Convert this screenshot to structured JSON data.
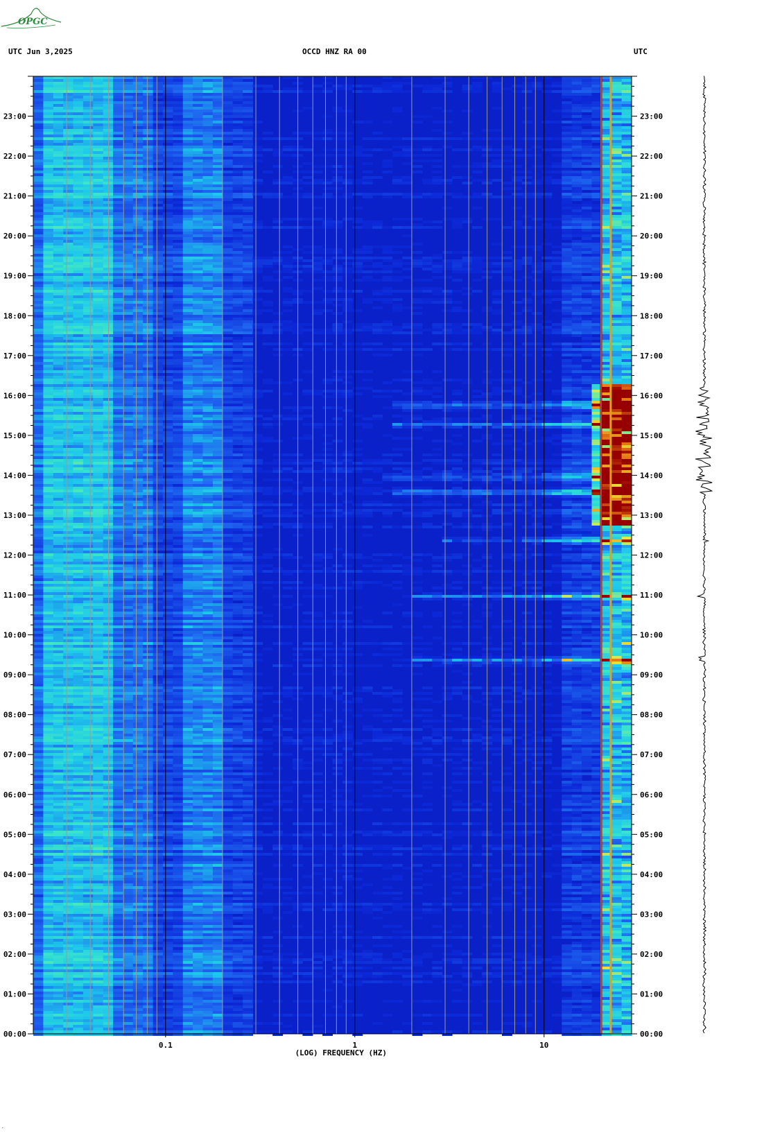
{
  "logo": {
    "text": "OPGC"
  },
  "header": {
    "left": "UTC  Jun 3,2025",
    "center": "OCCD HNZ RA 00",
    "right": "UTC"
  },
  "colors": {
    "background_band": "#0a20c8",
    "mid": "#1e6bf0",
    "cyan": "#20d8f0",
    "yellow": "#f0f040",
    "red": "#b00000"
  },
  "chart_data": {
    "type": "heatmap",
    "title": "OCCD HNZ RA 00",
    "xlabel": "(LOG) FREQUENCY (HZ)",
    "ylabel": "",
    "xscale": "log",
    "xlim": [
      0.02,
      29
    ],
    "x_ticks": [
      {
        "value": 0.1,
        "label": "0.1"
      },
      {
        "value": 1,
        "label": "1"
      },
      {
        "value": 10,
        "label": "10"
      }
    ],
    "y_ticks": [
      "00:00",
      "01:00",
      "02:00",
      "03:00",
      "04:00",
      "05:00",
      "06:00",
      "07:00",
      "08:00",
      "09:00",
      "10:00",
      "11:00",
      "12:00",
      "13:00",
      "14:00",
      "15:00",
      "16:00",
      "17:00",
      "18:00",
      "19:00",
      "20:00",
      "21:00",
      "22:00",
      "23:00"
    ],
    "ylim_hours": [
      0,
      24
    ],
    "persistent_lines_hz": [
      20,
      22.5
    ],
    "events": [
      {
        "time_hours": 9.4,
        "freq_range_hz": [
          2,
          29
        ]
      },
      {
        "time_hours": 11.0,
        "freq_range_hz": [
          2,
          29
        ]
      },
      {
        "time_hours": 12.4,
        "freq_range_hz": [
          3,
          29
        ]
      },
      {
        "time_hours": 13.6,
        "freq_range_hz": [
          1.5,
          29
        ]
      },
      {
        "time_hours": 14.0,
        "freq_range_hz": [
          1.4,
          29
        ]
      },
      {
        "time_hours": 15.3,
        "freq_range_hz": [
          1.5,
          29
        ]
      },
      {
        "time_hours": 15.8,
        "freq_range_hz": [
          1.5,
          29
        ]
      }
    ]
  }
}
